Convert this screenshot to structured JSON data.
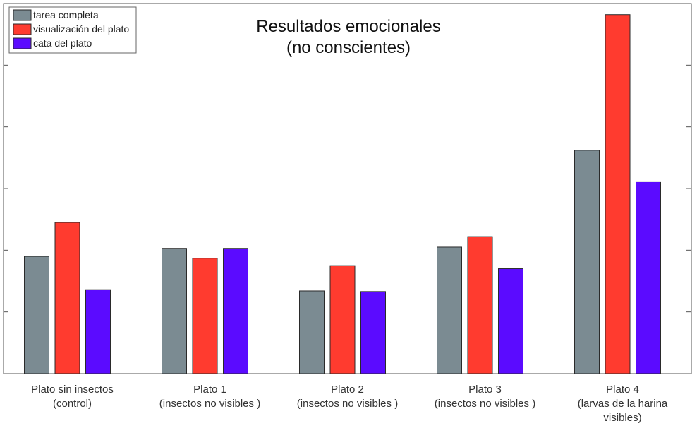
{
  "chart_data": {
    "type": "bar",
    "title": [
      "Resultados emocionales",
      "(no conscientes)"
    ],
    "categories": [
      [
        "Plato sin insectos",
        "(control)"
      ],
      [
        "Plato 1",
        "(insectos no visibles )"
      ],
      [
        "Plato 2",
        "(insectos no visibles )"
      ],
      [
        "Plato 3",
        "(insectos no visibles )"
      ],
      [
        "Plato 4",
        "(larvas de la harina",
        "visibles)"
      ]
    ],
    "series": [
      {
        "name": "tarea completa",
        "color": "#7b8b92",
        "values": [
          1.9,
          2.03,
          1.34,
          2.05,
          3.62
        ]
      },
      {
        "name": "visualización del plato",
        "color": "#ff3b2f",
        "values": [
          2.45,
          1.87,
          1.75,
          2.22,
          5.82
        ]
      },
      {
        "name": "cata del plato",
        "color": "#5b0bff",
        "values": [
          1.36,
          2.03,
          1.33,
          1.7,
          3.11
        ]
      }
    ],
    "ylim": [
      0,
      6
    ],
    "yticks": [
      1,
      2,
      3,
      4,
      5
    ],
    "ytick_labels_shown": false,
    "xlabel": "",
    "ylabel": "",
    "grid": false,
    "legend_position": "top-left"
  }
}
